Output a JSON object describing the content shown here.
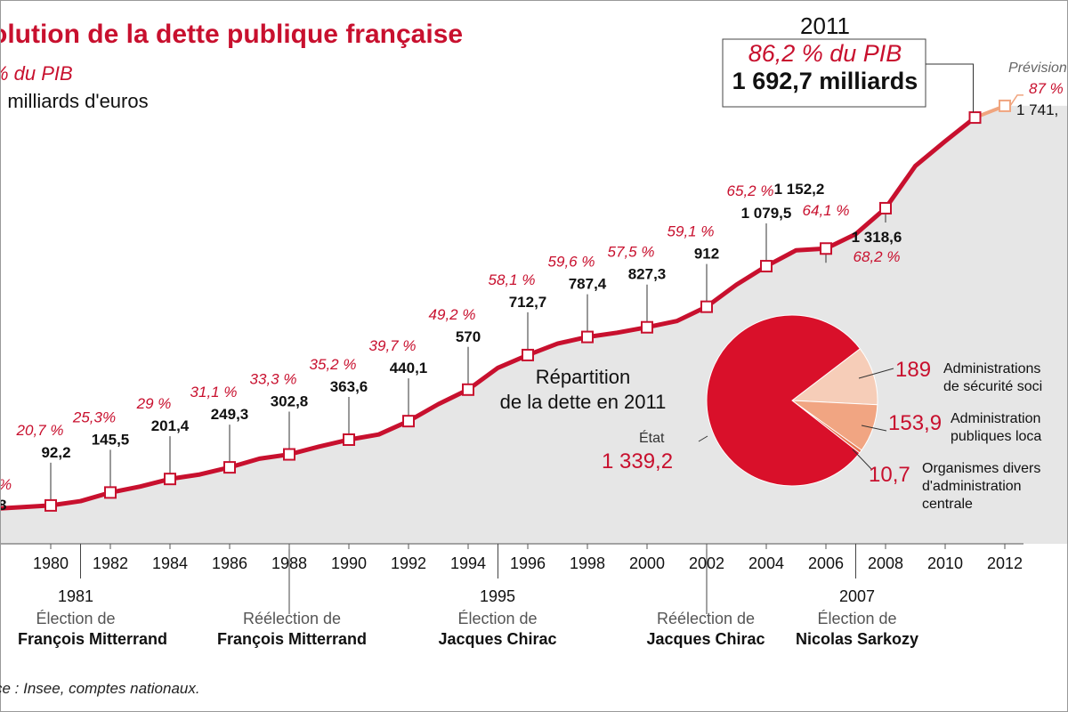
{
  "title": "olution de la dette publique française",
  "subtitle_pct": "% du PIB",
  "subtitle_unit": "n milliards d'euros",
  "source": "ce : Insee, comptes nationaux.",
  "callout_2011": {
    "year": "2011",
    "pct": "86,2 % du PIB",
    "amount": "1 692,7 milliards"
  },
  "forecast": {
    "label": "Prévision",
    "pct": "87 %",
    "amount": "1 741,"
  },
  "events": [
    {
      "year": "1981",
      "line1": "Élection de",
      "line2": "François Mitterrand"
    },
    {
      "year": "",
      "line1": "Réélection de",
      "line2": "François Mitterrand"
    },
    {
      "year": "1995",
      "line1": "Élection de",
      "line2": "Jacques Chirac"
    },
    {
      "year": "",
      "line1": "Réélection de",
      "line2": "Jacques Chirac"
    },
    {
      "year": "2007",
      "line1": "Élection de",
      "line2": "Nicolas Sarkozy"
    }
  ],
  "pie": {
    "title_line1": "Répartition",
    "title_line2": "de la dette en 2011",
    "slices": [
      {
        "label": "État",
        "value": "1 339,2",
        "num": 1339.2,
        "color": "#d9102a"
      },
      {
        "label_line1": "Administrations",
        "label_line2": "de sécurité soci",
        "value": "189",
        "num": 189,
        "color": "#f6cdb8"
      },
      {
        "label_line1": "Administration",
        "label_line2": "publiques loca",
        "value": "153,9",
        "num": 153.9,
        "color": "#f1a582"
      },
      {
        "label_line1": "Organismes divers",
        "label_line2": "d'administration",
        "label_line3": "centrale",
        "value": "10,7",
        "num": 10.7,
        "color": "#e8754f"
      }
    ]
  },
  "chart_data": {
    "type": "line",
    "x_ticks": [
      "8",
      "1980",
      "1982",
      "1984",
      "1986",
      "1988",
      "1990",
      "1992",
      "1994",
      "1996",
      "1998",
      "2000",
      "2002",
      "2004",
      "2006",
      "2008",
      "2010",
      "2012"
    ],
    "series": [
      {
        "x": [
          1978,
          1979,
          1980,
          1981,
          1982,
          1983,
          1984,
          1985,
          1986,
          1987,
          1988,
          1989,
          1990,
          1991,
          1992,
          1993,
          1994,
          1995,
          1996,
          1997,
          1998,
          1999,
          2000,
          2001,
          2002,
          2003,
          2004,
          2005,
          2006,
          2007,
          2008,
          2009,
          2010,
          2011
        ],
        "values": [
          78,
          85,
          92.2,
          110,
          145.5,
          170,
          201.4,
          220,
          249.3,
          285,
          302.8,
          335,
          363.6,
          385,
          440.1,
          510,
          570,
          660,
          712.7,
          760,
          787.4,
          805,
          827.3,
          853,
          912,
          1003,
          1079.5,
          1145,
          1152.2,
          1212,
          1318.6,
          1493,
          1595,
          1692.7
        ]
      },
      {
        "x": [
          2011,
          2012
        ],
        "values": [
          1692.7,
          1741
        ]
      }
    ],
    "points": [
      {
        "year": 1978,
        "amount": "8",
        "pct": "%"
      },
      {
        "year": 1980,
        "amount": "92,2",
        "pct": "20,7 %"
      },
      {
        "year": 1982,
        "amount": "145,5",
        "pct": "25,3%"
      },
      {
        "year": 1984,
        "amount": "201,4",
        "pct": "29 %"
      },
      {
        "year": 1986,
        "amount": "249,3",
        "pct": "31,1 %"
      },
      {
        "year": 1988,
        "amount": "302,8",
        "pct": "33,3 %"
      },
      {
        "year": 1990,
        "amount": "363,6",
        "pct": "35,2 %"
      },
      {
        "year": 1992,
        "amount": "440,1",
        "pct": "39,7 %"
      },
      {
        "year": 1994,
        "amount": "570",
        "pct": "49,2 %"
      },
      {
        "year": 1996,
        "amount": "712,7",
        "pct": "58,1 %"
      },
      {
        "year": 1998,
        "amount": "787,4",
        "pct": "59,6 %"
      },
      {
        "year": 2000,
        "amount": "827,3",
        "pct": "57,5 %"
      },
      {
        "year": 2002,
        "amount": "912",
        "pct": "59,1 %"
      },
      {
        "year": 2004,
        "amount": "1 079,5",
        "pct": "65,2 %"
      },
      {
        "year": 2006,
        "amount": "1 152,2",
        "pct": "64,1 %"
      },
      {
        "year": 2008,
        "amount": "1 318,6",
        "pct": "68,2 %"
      }
    ],
    "xlim": [
      1978,
      2013
    ],
    "ylim": [
      0,
      1800
    ],
    "grid": false
  }
}
